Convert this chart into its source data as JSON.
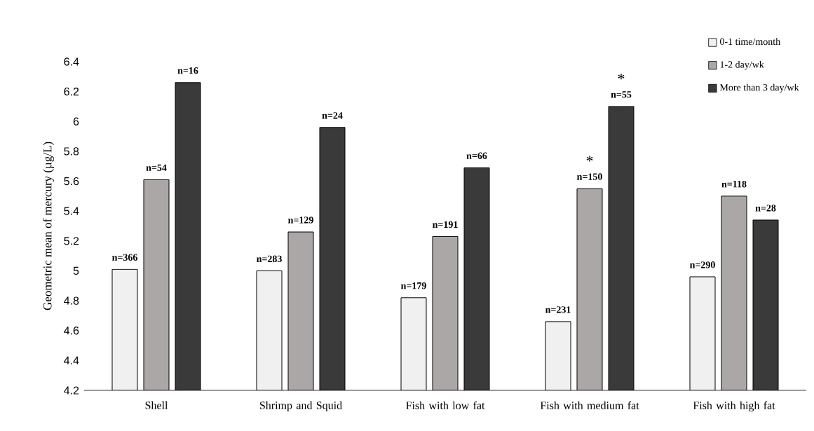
{
  "chart_data": {
    "type": "bar",
    "ylabel": "Geometric mean of  mercury (µg/L)",
    "categories": [
      "Shell",
      "Shrimp and Squid",
      "Fish with low fat",
      "Fish with medium fat",
      "Fish with high fat"
    ],
    "series": [
      {
        "name": "0-1 time/month",
        "color": "#f0f0f0",
        "values": [
          5.01,
          5.0,
          4.82,
          4.66,
          4.96
        ]
      },
      {
        "name": "1-2 day/wk",
        "color": "#aba7a7",
        "values": [
          5.61,
          5.26,
          5.23,
          5.55,
          5.5
        ]
      },
      {
        "name": "More than 3 day/wk",
        "color": "#3a3a3a",
        "values": [
          6.26,
          5.96,
          5.69,
          6.1,
          5.34
        ]
      }
    ],
    "annotations": [
      "n=366",
      "n=54",
      "n=16",
      "n=283",
      "n=129",
      "n=24",
      "n=179",
      "n=191",
      "n=66",
      "n=231",
      "n=150",
      "n=55",
      "n=290",
      "n=118",
      "n=28",
      "*",
      "*"
    ],
    "ylim": [
      4.2,
      6.4
    ],
    "yticks": [
      4.2,
      4.4,
      4.6,
      4.8,
      5,
      5.2,
      5.4,
      5.6,
      5.8,
      6,
      6.2,
      6.4
    ],
    "grid": false,
    "legend": "top right"
  }
}
